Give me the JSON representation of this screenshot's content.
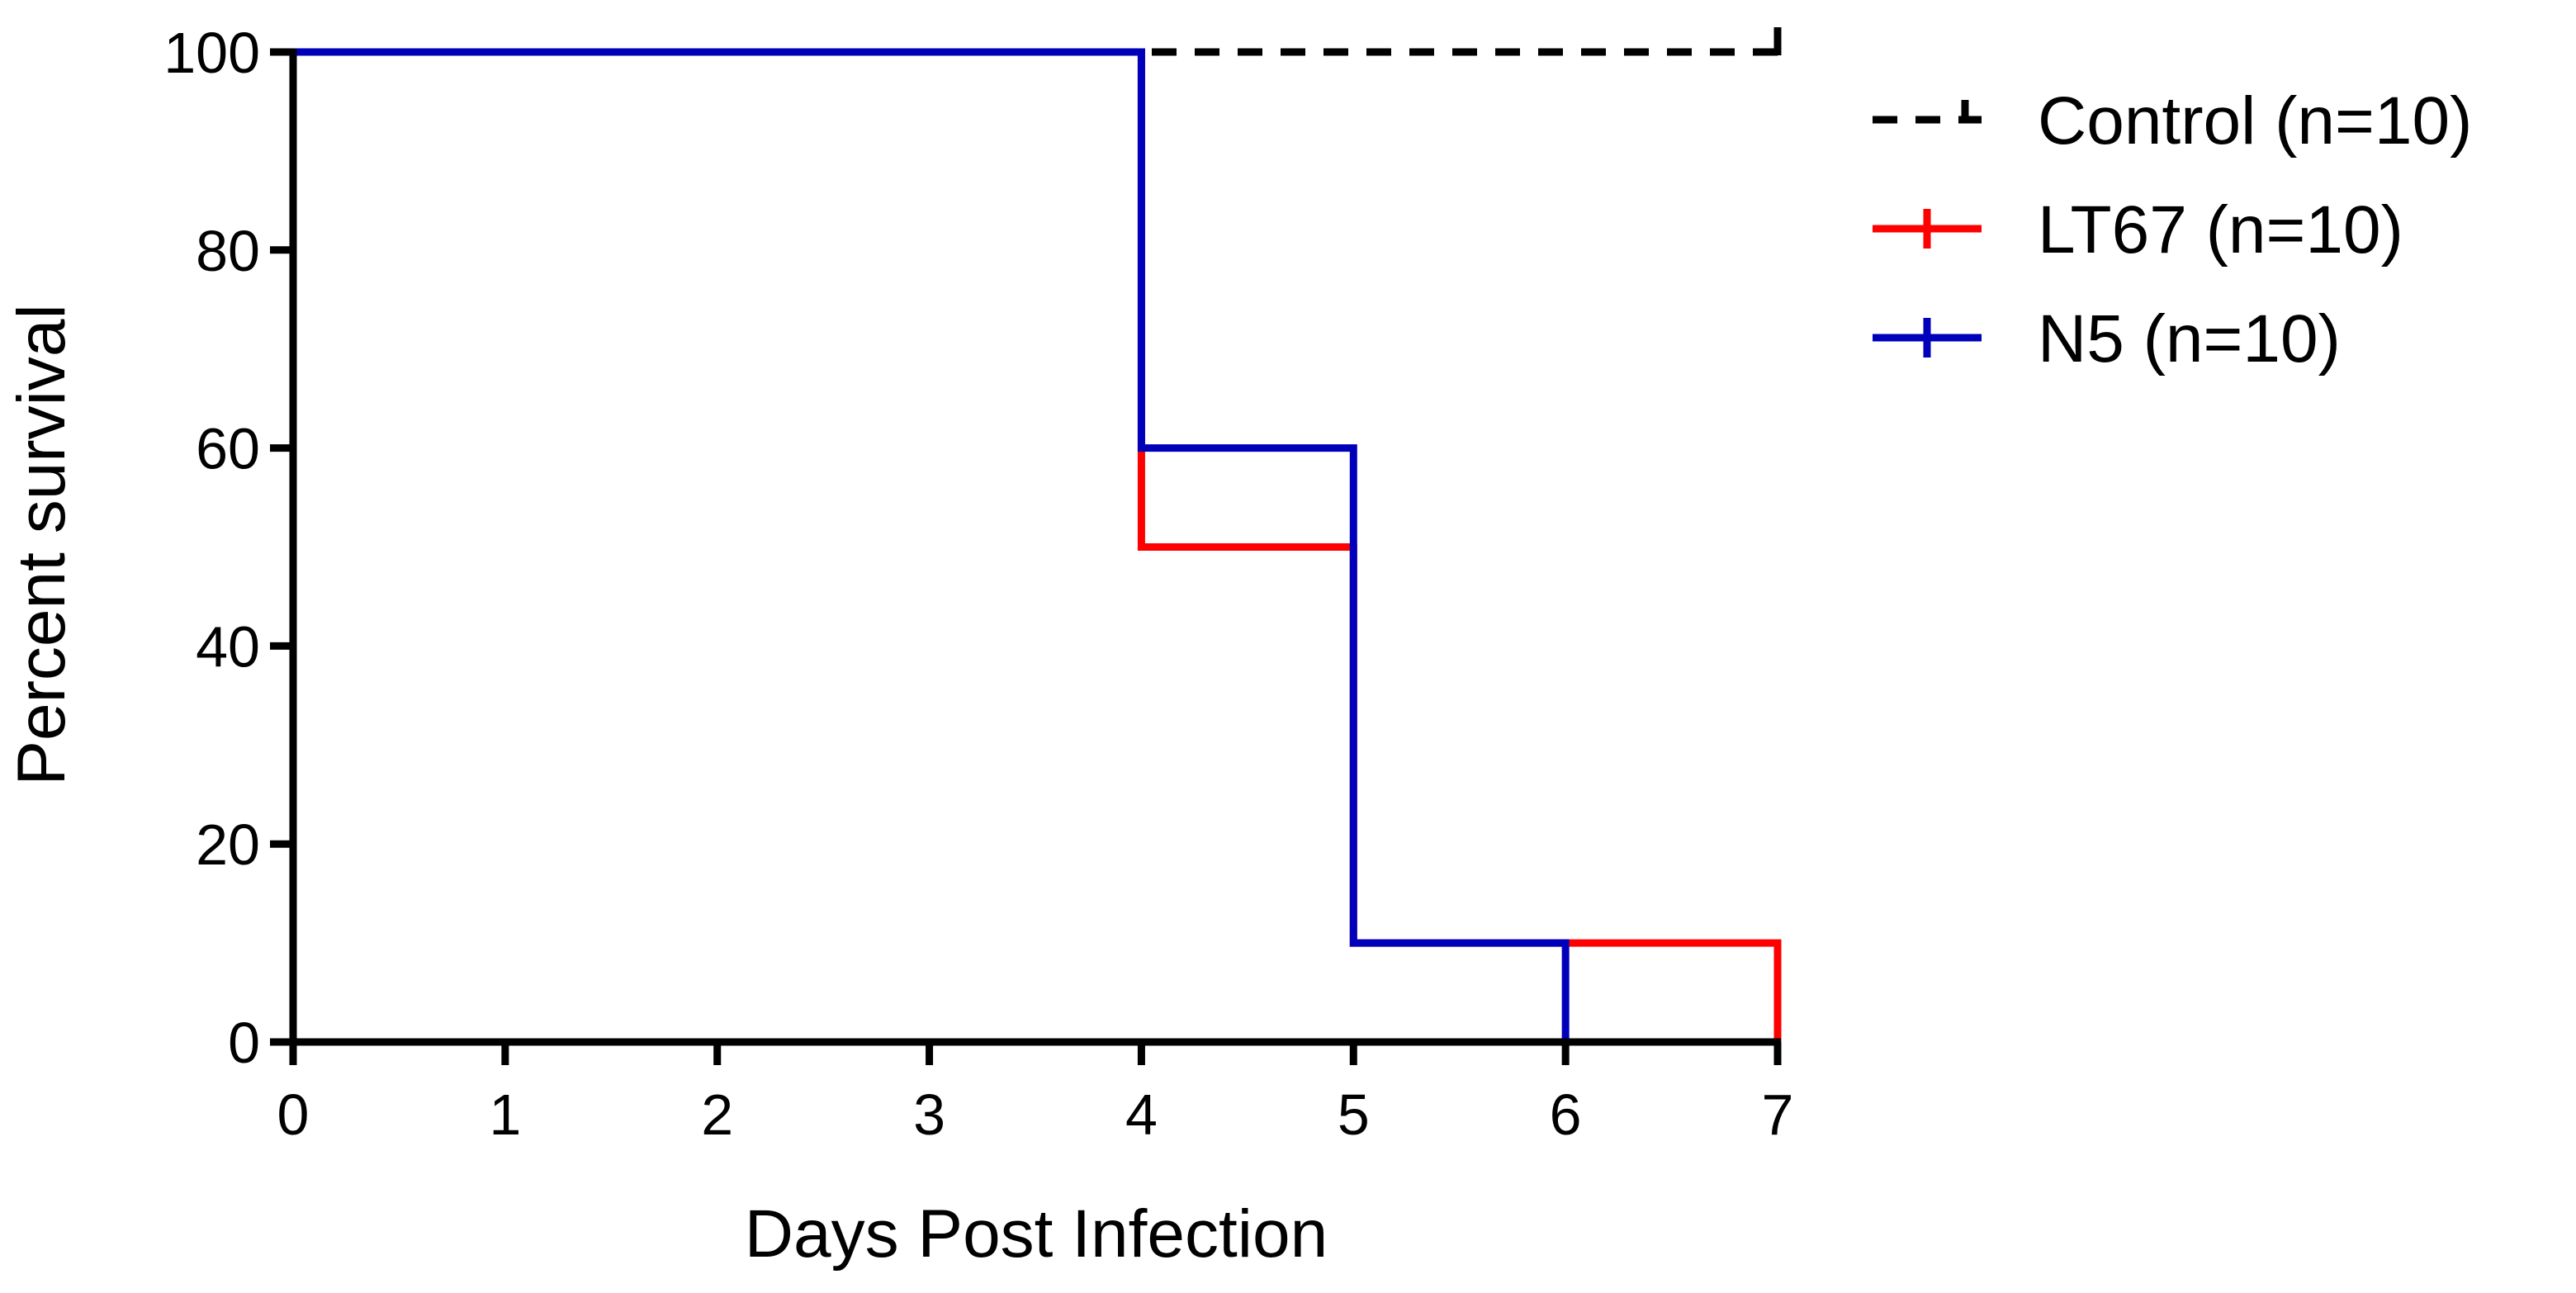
{
  "chart_data": {
    "type": "line",
    "step": true,
    "title": "",
    "xlabel": "Days Post Infection",
    "ylabel": "Percent survival",
    "xlim": [
      0,
      7
    ],
    "ylim": [
      0,
      100
    ],
    "x_ticks": [
      0,
      1,
      2,
      3,
      4,
      5,
      6,
      7
    ],
    "y_ticks": [
      0,
      20,
      40,
      60,
      80,
      100
    ],
    "grid": false,
    "legend_position": "right",
    "series": [
      {
        "name": "Control (n=10)",
        "color": "#000000",
        "dashed": true,
        "points": [
          [
            0,
            100
          ],
          [
            7,
            100
          ]
        ],
        "censor_ticks": [
          [
            7,
            100
          ]
        ]
      },
      {
        "name": "LT67 (n=10)",
        "color": "#ff0000",
        "dashed": false,
        "points": [
          [
            0,
            100
          ],
          [
            4,
            100
          ],
          [
            4,
            50
          ],
          [
            5,
            50
          ],
          [
            5,
            10
          ],
          [
            7,
            10
          ],
          [
            7,
            0
          ]
        ],
        "censor_ticks": []
      },
      {
        "name": "N5 (n=10)",
        "color": "#0000bb",
        "dashed": false,
        "points": [
          [
            0,
            100
          ],
          [
            4,
            100
          ],
          [
            4,
            60
          ],
          [
            5,
            60
          ],
          [
            5,
            10
          ],
          [
            6,
            10
          ],
          [
            6,
            0
          ]
        ],
        "censor_ticks": []
      }
    ]
  }
}
